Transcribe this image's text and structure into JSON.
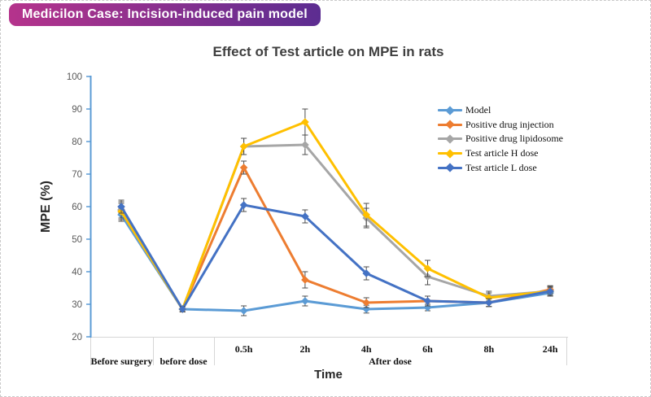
{
  "header": {
    "title": "Medicilon Case: Incision-induced pain model"
  },
  "axis_titles": {
    "y": "MPE (%)",
    "x": "Time"
  },
  "chart_data": {
    "type": "line",
    "title": "Effect of Test article on MPE in rats",
    "xlabel": "Time",
    "ylabel": "MPE (%)",
    "ylim": [
      20,
      100
    ],
    "ytick_step": 10,
    "ytick_labels": [
      "20",
      "30",
      "40",
      "50",
      "60",
      "70",
      "80",
      "90",
      "100"
    ],
    "grid": false,
    "error_bars": true,
    "marker": "diamond",
    "legend_position": "inside-upper-right",
    "categories": [
      "Before surgery",
      "before dose",
      "0.5h",
      "2h",
      "4h",
      "6h",
      "8h",
      "24h"
    ],
    "category_groups": [
      {
        "label": "Before surgery",
        "span": [
          0,
          0
        ]
      },
      {
        "label": "before dose",
        "span": [
          1,
          1
        ]
      },
      {
        "label": "After dose",
        "span": [
          2,
          7
        ]
      }
    ],
    "series": [
      {
        "name": "Model",
        "color": "#5B9BD5",
        "values": [
          57.5,
          28.5,
          28,
          31,
          28.5,
          29,
          30.5,
          33.5
        ],
        "errors": [
          2,
          0.8,
          1.5,
          1.5,
          1.2,
          1,
          1.2,
          1
        ]
      },
      {
        "name": "Positive drug injection",
        "color": "#ED7D31",
        "values": [
          59,
          28.5,
          72,
          37.5,
          30.5,
          31,
          30.5,
          34.5
        ],
        "errors": [
          2.5,
          0.8,
          2,
          2.5,
          1.5,
          1.5,
          1.2,
          1.2
        ]
      },
      {
        "name": "Positive drug lipidosome",
        "color": "#A6A6A6",
        "values": [
          59,
          28.5,
          78.5,
          79,
          56.5,
          38.5,
          32.5,
          34
        ],
        "errors": [
          2.5,
          0.8,
          2.5,
          3,
          3,
          2.5,
          1.5,
          1.5
        ]
      },
      {
        "name": "Test article H dose",
        "color": "#FFC000",
        "values": [
          58.5,
          28.5,
          78.5,
          86,
          57.5,
          41,
          32,
          34
        ],
        "errors": [
          2.5,
          0.8,
          2.5,
          4,
          3.5,
          2.5,
          1.5,
          1.5
        ]
      },
      {
        "name": "Test article L dose",
        "color": "#4472C4",
        "values": [
          60,
          28.5,
          60.5,
          57,
          39.5,
          31,
          30.5,
          34
        ],
        "errors": [
          2,
          0.8,
          2,
          2,
          2,
          1.5,
          1.2,
          1.2
        ]
      }
    ]
  }
}
